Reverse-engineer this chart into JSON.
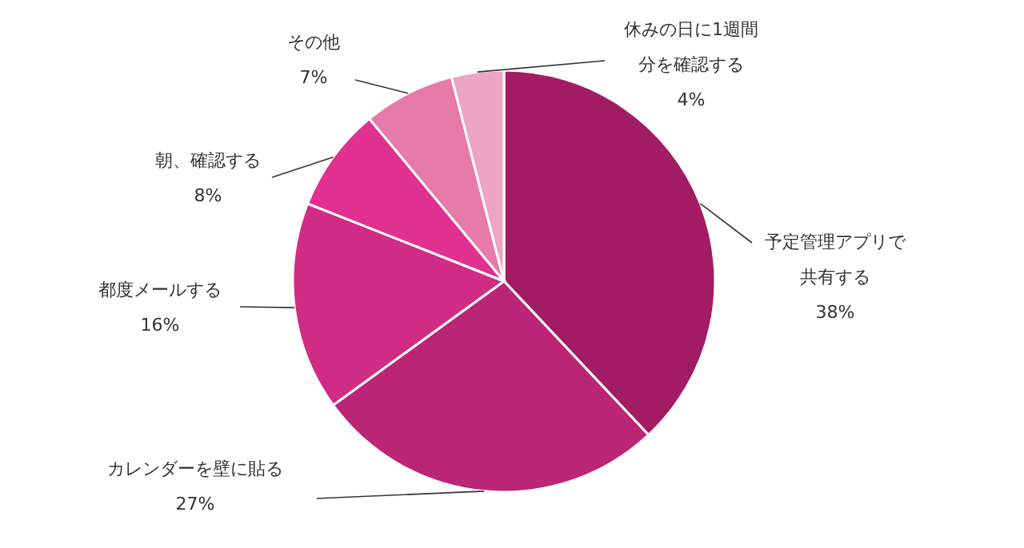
{
  "chart_data": {
    "type": "pie",
    "categories": [
      "予定管理アプリで共有する",
      "カレンダーを壁に貼る",
      "都度メールする",
      "朝、確認する",
      "その他",
      "休みの日に1週間分を確認する"
    ],
    "values": [
      38,
      27,
      16,
      8,
      7,
      4
    ],
    "colors": [
      "#a21c63",
      "#bb2575",
      "#d02c84",
      "#e03190",
      "#e67aa9",
      "#eda5c4"
    ],
    "value_labels": [
      "38%",
      "27%",
      "16%",
      "8%",
      "7%",
      "4%"
    ]
  }
}
